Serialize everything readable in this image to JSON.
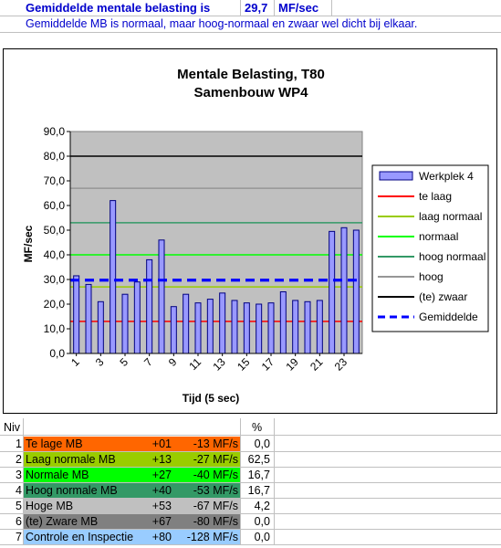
{
  "header": {
    "label": "Gemiddelde mentale belasting is",
    "value": "29,7",
    "unit": "MF/sec",
    "note": "Gemiddelde MB is normaal, maar hoog-normaal en zwaar wel dicht bij elkaar."
  },
  "chart_data": {
    "type": "bar",
    "title": "Mentale Belasting, T80",
    "subtitle": "Samenbouw WP4",
    "xlabel": "Tijd (5 sec)",
    "ylabel": "MF/sec",
    "ylim": [
      0,
      90
    ],
    "y_ticks": [
      "0,0",
      "10,0",
      "20,0",
      "30,0",
      "40,0",
      "50,0",
      "60,0",
      "70,0",
      "80,0",
      "90,0"
    ],
    "x_ticks": [
      "1",
      "3",
      "5",
      "7",
      "9",
      "11",
      "13",
      "15",
      "17",
      "19",
      "21",
      "23"
    ],
    "categories": [
      1,
      2,
      3,
      4,
      5,
      6,
      7,
      8,
      9,
      10,
      11,
      12,
      13,
      14,
      15,
      16,
      17,
      18,
      19,
      20,
      21,
      22,
      23,
      24
    ],
    "series": [
      {
        "name": "Werkplek 4",
        "values": [
          31.5,
          28,
          21,
          62,
          24,
          29,
          38,
          46,
          19,
          24,
          20.5,
          22,
          24.5,
          21.5,
          20.5,
          20,
          20.5,
          25,
          21.5,
          21,
          21.5,
          49.5,
          51,
          50
        ],
        "color": "#9999ff"
      }
    ],
    "reference_lines": [
      {
        "name": "te laag",
        "value": 13,
        "color": "#ff0000"
      },
      {
        "name": "laag normaal",
        "value": 27,
        "color": "#99cc00"
      },
      {
        "name": "normaal",
        "value": 40,
        "color": "#00ff00"
      },
      {
        "name": "hoog normaal",
        "value": 53,
        "color": "#339966"
      },
      {
        "name": "hoog",
        "value": 67,
        "color": "#969696"
      },
      {
        "name": "(te) zwaar",
        "value": 80,
        "color": "#000000"
      },
      {
        "name": "Gemiddelde",
        "value": 29.7,
        "color": "#0000ff",
        "dashed": true
      }
    ],
    "legend_placement": "right",
    "grid": false,
    "plot_background": "#c0c0c0"
  },
  "table": {
    "header_niv": "Niv",
    "header_pct": "%",
    "rows": [
      {
        "niv": "1",
        "label": "Te lage MB",
        "code": "+01",
        "range": "-13 MF/s",
        "pct": "0,0",
        "color": "#ff6600"
      },
      {
        "niv": "2",
        "label": "Laag normale MB",
        "code": "+13",
        "range": "-27 MF/s",
        "pct": "62,5",
        "color": "#99cc00"
      },
      {
        "niv": "3",
        "label": "Normale MB",
        "code": "+27",
        "range": "-40 MF/s",
        "pct": "16,7",
        "color": "#00ff00"
      },
      {
        "niv": "4",
        "label": "Hoog normale MB",
        "code": "+40",
        "range": "-53 MF/s",
        "pct": "16,7",
        "color": "#339966"
      },
      {
        "niv": "5",
        "label": "Hoge MB",
        "code": "+53",
        "range": "-67 MF/s",
        "pct": "4,2",
        "color": "#c0c0c0"
      },
      {
        "niv": "6",
        "label": "(te) Zware MB",
        "code": "+67",
        "range": "-80 MF/s",
        "pct": "0,0",
        "color": "#808080"
      },
      {
        "niv": "7",
        "label": "Controle en Inspectie",
        "code": "+80",
        "range": "-128 MF/s",
        "pct": "0,0",
        "color": "#99ccff"
      }
    ]
  }
}
